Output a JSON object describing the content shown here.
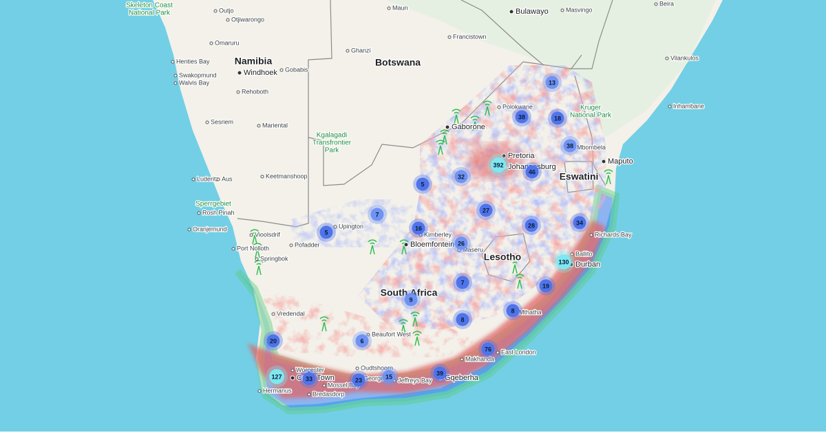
{
  "countries": [
    "Namibia",
    "Botswana",
    "Lesotho",
    "Eswatini",
    "South Africa"
  ],
  "parks": [
    [
      "Skeleton Coast",
      "National Park"
    ],
    [
      "Kruger",
      "National Park"
    ],
    [
      "Kgalagadi",
      "Transfrontier",
      "Park"
    ],
    [
      "Sperrgebiet"
    ]
  ],
  "major_cities": [
    "Windhoek",
    "Bulawayo",
    "Gaborone",
    "Maputo",
    "Pretoria",
    "Johannesburg",
    "Bloemfontein",
    "Durban",
    "Cape Town",
    "Gqeberha"
  ],
  "places": [
    "Outjo",
    "Otjiwarongo",
    "Maun",
    "Masvingo",
    "Beira",
    "Francistown",
    "Ghanzi",
    "Omaruru",
    "Henties Bay",
    "Swakopmund",
    "Walvis Bay",
    "Gobabis",
    "Rehoboth",
    "Vilankulos",
    "Inhambane",
    "Polokwane",
    "Sesriem",
    "Mariental",
    "Mbombela",
    "Luderitz",
    "Aus",
    "Keetmanshoop",
    "Rosh Pinah",
    "Oranjemund",
    "Upington",
    "Kimberley",
    "Maseru",
    "Richards Bay",
    "Port Nolloth",
    "Springbok",
    "Pofadder",
    "Vioolsdrif",
    "Ballito",
    "Vredendal",
    "Mthatha",
    "Beaufort West",
    "East London",
    "Makhanda",
    "Worcester",
    "Oudtshoorn",
    "George",
    "Jeffreys Bay",
    "Mossel Bay",
    "Hermanus",
    "Bredasdorp"
  ],
  "clusters": [
    13,
    38,
    18,
    38,
    392,
    46,
    32,
    5,
    27,
    7,
    5,
    16,
    26,
    28,
    34,
    130,
    19,
    7,
    9,
    8,
    8,
    6,
    20,
    76,
    127,
    33,
    23,
    15,
    39
  ]
}
